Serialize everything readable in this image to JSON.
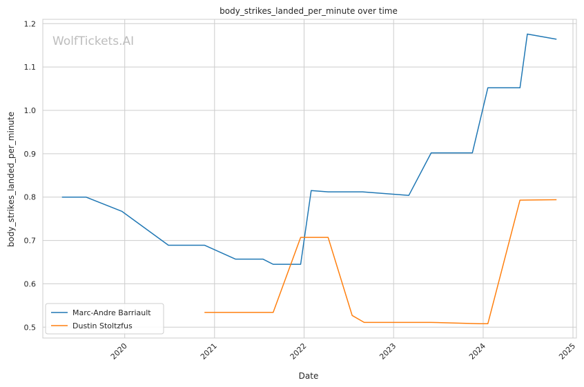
{
  "chart_data": {
    "type": "line",
    "title": "body_strikes_landed_per_minute over time",
    "xlabel": "Date",
    "ylabel": "body_strikes_landed_per_minute",
    "watermark": "WolfTickets.AI",
    "xlim": [
      "2019-02-01",
      "2025-01-15"
    ],
    "ylim": [
      0.475,
      1.21
    ],
    "x_ticks": [
      "2020",
      "2021",
      "2022",
      "2023",
      "2024",
      "2025"
    ],
    "y_ticks": [
      "0.5",
      "0.6",
      "0.7",
      "0.8",
      "0.9",
      "1.0",
      "1.1",
      "1.2"
    ],
    "grid": true,
    "legend": "lower-left",
    "series": [
      {
        "name": "Marc-Andre Barriault",
        "color": "#1f77b4",
        "x": [
          "2019-04-20",
          "2019-07-27",
          "2019-12-21",
          "2020-06-27",
          "2020-11-21",
          "2021-03-27",
          "2021-07-17",
          "2021-08-28",
          "2021-12-18",
          "2022-01-30",
          "2022-04-09",
          "2022-08-27",
          "2023-03-04",
          "2023-06-03",
          "2023-11-18",
          "2024-01-20",
          "2024-05-30",
          "2024-06-29",
          "2024-10-26"
        ],
        "values": [
          0.8,
          0.8,
          0.767,
          0.689,
          0.689,
          0.657,
          0.657,
          0.645,
          0.645,
          0.815,
          0.812,
          0.812,
          0.804,
          0.902,
          0.902,
          1.052,
          1.052,
          1.176,
          1.164
        ]
      },
      {
        "name": "Dustin Stoltzfus",
        "color": "#ff7f0e",
        "x": [
          "2020-11-21",
          "2021-08-28",
          "2021-12-18",
          "2022-04-09",
          "2022-07-16",
          "2022-09-03",
          "2023-06-03",
          "2023-12-16",
          "2024-01-20",
          "2024-05-30",
          "2024-10-26"
        ],
        "values": [
          0.534,
          0.534,
          0.707,
          0.707,
          0.527,
          0.511,
          0.511,
          0.508,
          0.508,
          0.793,
          0.794
        ]
      }
    ]
  }
}
